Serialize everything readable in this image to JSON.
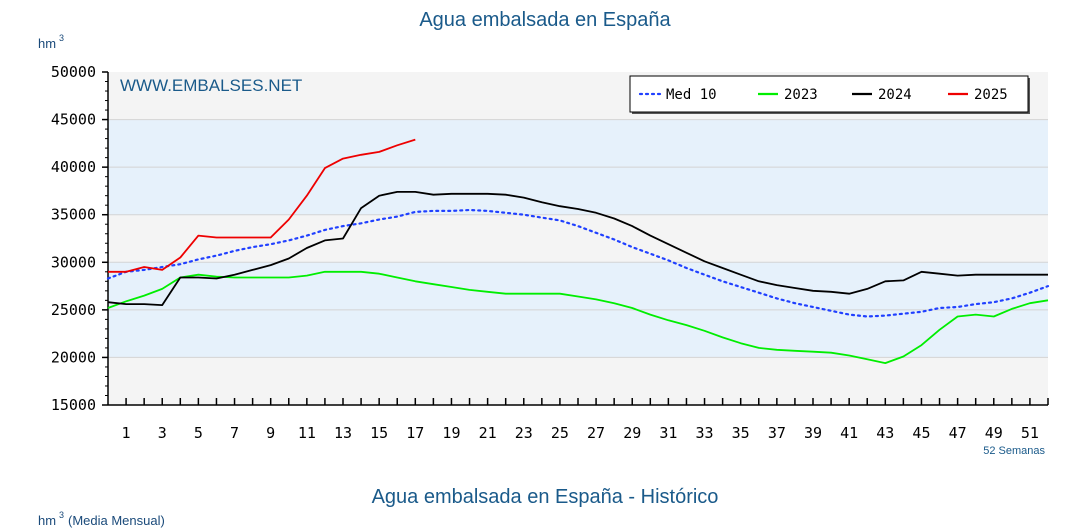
{
  "chart_data": {
    "type": "line",
    "title": "Agua embalsada en España",
    "ylabel": "hm",
    "ylabel_sup": "3",
    "watermark": "WWW.EMBALSES.NET",
    "xlabel_note": "52 Semanas",
    "ylim": [
      15000,
      50000
    ],
    "xlim": [
      0,
      52
    ],
    "y_ticks": [
      15000,
      20000,
      25000,
      30000,
      35000,
      40000,
      45000,
      50000
    ],
    "x_ticks": [
      1,
      3,
      5,
      7,
      9,
      11,
      13,
      15,
      17,
      19,
      21,
      23,
      25,
      27,
      29,
      31,
      33,
      35,
      37,
      39,
      41,
      43,
      45,
      47,
      49,
      51
    ],
    "legend_position": "top-right",
    "series": [
      {
        "name": "Med 10",
        "color": "#2040ff",
        "style": "dotted",
        "x": [
          0,
          1,
          2,
          3,
          4,
          5,
          6,
          7,
          8,
          9,
          10,
          11,
          12,
          13,
          14,
          15,
          16,
          17,
          18,
          19,
          20,
          21,
          22,
          23,
          24,
          25,
          26,
          27,
          28,
          29,
          30,
          31,
          32,
          33,
          34,
          35,
          36,
          37,
          38,
          39,
          40,
          41,
          42,
          43,
          44,
          45,
          46,
          47,
          48,
          49,
          50,
          51,
          52
        ],
        "values": [
          28300,
          29000,
          29200,
          29500,
          29800,
          30300,
          30700,
          31200,
          31600,
          31900,
          32300,
          32800,
          33400,
          33800,
          34100,
          34500,
          34800,
          35300,
          35400,
          35400,
          35500,
          35400,
          35200,
          35000,
          34700,
          34400,
          33800,
          33100,
          32400,
          31600,
          30900,
          30200,
          29400,
          28700,
          28000,
          27400,
          26800,
          26200,
          25700,
          25300,
          24900,
          24500,
          24300,
          24400,
          24600,
          24800,
          25200,
          25300,
          25600,
          25800,
          26200,
          26800,
          27500
        ]
      },
      {
        "name": "2023",
        "color": "#00ee00",
        "style": "solid",
        "x": [
          0,
          1,
          2,
          3,
          4,
          5,
          6,
          7,
          8,
          9,
          10,
          11,
          12,
          13,
          14,
          15,
          16,
          17,
          18,
          19,
          20,
          21,
          22,
          23,
          24,
          25,
          26,
          27,
          28,
          29,
          30,
          31,
          32,
          33,
          34,
          35,
          36,
          37,
          38,
          39,
          40,
          41,
          42,
          43,
          44,
          45,
          46,
          47,
          48,
          49,
          50,
          51,
          52
        ],
        "values": [
          25200,
          25900,
          26500,
          27200,
          28400,
          28700,
          28500,
          28400,
          28400,
          28400,
          28400,
          28600,
          29000,
          29000,
          29000,
          28800,
          28400,
          28000,
          27700,
          27400,
          27100,
          26900,
          26700,
          26700,
          26700,
          26700,
          26400,
          26100,
          25700,
          25200,
          24500,
          23900,
          23400,
          22800,
          22100,
          21500,
          21000,
          20800,
          20700,
          20600,
          20500,
          20200,
          19800,
          19400,
          20100,
          21300,
          22900,
          24300,
          24500,
          24300,
          25100,
          25700,
          26000
        ]
      },
      {
        "name": "2024",
        "color": "#000000",
        "style": "solid",
        "x": [
          0,
          1,
          2,
          3,
          4,
          5,
          6,
          7,
          8,
          9,
          10,
          11,
          12,
          13,
          14,
          15,
          16,
          17,
          18,
          19,
          20,
          21,
          22,
          23,
          24,
          25,
          26,
          27,
          28,
          29,
          30,
          31,
          32,
          33,
          34,
          35,
          36,
          37,
          38,
          39,
          40,
          41,
          42,
          43,
          44,
          45,
          46,
          47,
          48,
          49,
          50,
          51,
          52
        ],
        "values": [
          25800,
          25600,
          25600,
          25500,
          28400,
          28400,
          28300,
          28700,
          29200,
          29700,
          30400,
          31500,
          32300,
          32500,
          35700,
          37000,
          37400,
          37400,
          37100,
          37200,
          37200,
          37200,
          37100,
          36800,
          36300,
          35900,
          35600,
          35200,
          34600,
          33800,
          32800,
          31900,
          31000,
          30100,
          29400,
          28700,
          28000,
          27600,
          27300,
          27000,
          26900,
          26700,
          27200,
          28000,
          28100,
          29000,
          28800,
          28600,
          28700,
          28700,
          28700,
          28700,
          28700
        ]
      },
      {
        "name": "2025",
        "color": "#ee0000",
        "style": "solid",
        "x": [
          0,
          1,
          2,
          3,
          4,
          5,
          6,
          7,
          8,
          9,
          10,
          11,
          12,
          13,
          14,
          15,
          16,
          17
        ],
        "values": [
          29000,
          29000,
          29500,
          29200,
          30500,
          32800,
          32600,
          32600,
          32600,
          32600,
          34500,
          37000,
          39900,
          40900,
          41300,
          41600,
          42300,
          42900
        ]
      }
    ]
  },
  "second_chart": {
    "title": "Agua embalsada en España - Histórico",
    "ylabel": "hm",
    "ylabel_sup": "3",
    "ylabel_suffix": "(Media Mensual)"
  }
}
